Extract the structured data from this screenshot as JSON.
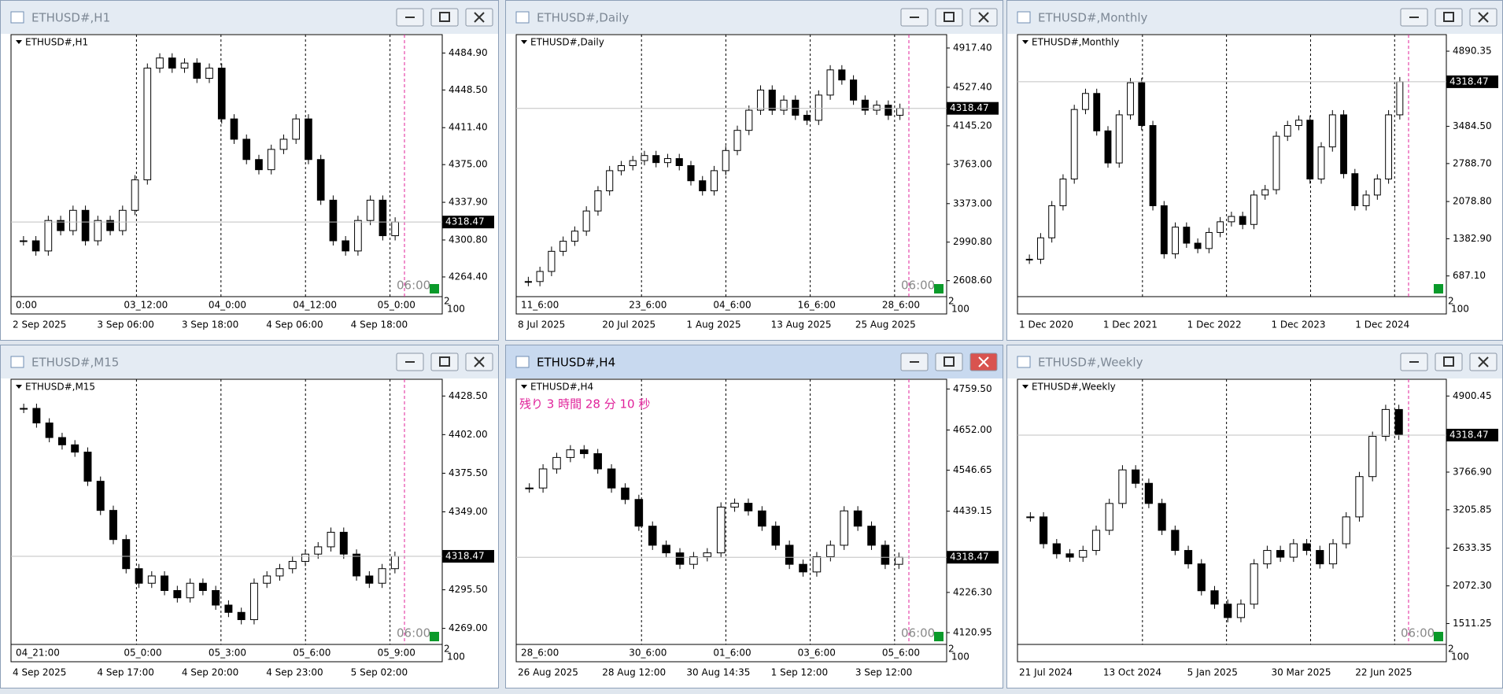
{
  "windows": [
    {
      "title": "ETHUSD#,H1",
      "label": "ETHUSD#,H1",
      "ylim": [
        4245,
        4503
      ],
      "yticks": [
        {
          "value": 4484.9,
          "label": "4484.90"
        },
        {
          "value": 4448.5,
          "label": "4448.50"
        },
        {
          "value": 4411.4,
          "label": "4411.40"
        },
        {
          "value": 4375,
          "label": "4375.00"
        },
        {
          "value": 4337.9,
          "label": "4337.90"
        },
        {
          "value": 4300.8,
          "label": "4300.80"
        },
        {
          "value": 4264.4,
          "label": "4264.40"
        }
      ],
      "current_price": 4318.47,
      "countdown": "06:00",
      "time_upper": [
        "0:00",
        "03_12:00",
        "04_0:00",
        "04_12:00",
        "05_0:00"
      ],
      "time_lower": [
        "2 Sep 2025",
        "3 Sep 06:00",
        "3 Sep 18:00",
        "4 Sep 06:00",
        "4 Sep 18:00"
      ],
      "axis_corner": [
        "2",
        "100"
      ],
      "closes": [
        4300,
        4290,
        4320,
        4310,
        4330,
        4300,
        4320,
        4310,
        4330,
        4360,
        4470,
        4480,
        4470,
        4475,
        4460,
        4470,
        4420,
        4400,
        4380,
        4370,
        4390,
        4400,
        4420,
        4380,
        4340,
        4300,
        4290,
        4320,
        4340,
        4305,
        4318.47
      ]
    },
    {
      "title": "ETHUSD#,Daily",
      "label": "ETHUSD#,Daily",
      "ylim": [
        2450,
        5050
      ],
      "yticks": [
        {
          "value": 4917.4,
          "label": "4917.40"
        },
        {
          "value": 4527.4,
          "label": "4527.40"
        },
        {
          "value": 4145.2,
          "label": "4145.20"
        },
        {
          "value": 3763,
          "label": "3763.00"
        },
        {
          "value": 3373,
          "label": "3373.00"
        },
        {
          "value": 2990.8,
          "label": "2990.80"
        },
        {
          "value": 2608.6,
          "label": "2608.60"
        }
      ],
      "current_price": 4318.47,
      "countdown": "06:00",
      "time_upper": [
        "11_6:00",
        "23_6:00",
        "04_6:00",
        "16_6:00",
        "28_6:00"
      ],
      "time_lower": [
        "8 Jul 2025",
        "20 Jul 2025",
        "1 Aug 2025",
        "13 Aug 2025",
        "25 Aug 2025"
      ],
      "axis_corner": [
        "2",
        "100"
      ],
      "closes": [
        2600,
        2700,
        2900,
        3000,
        3100,
        3300,
        3500,
        3700,
        3750,
        3800,
        3850,
        3780,
        3820,
        3750,
        3600,
        3500,
        3700,
        3900,
        4100,
        4300,
        4500,
        4300,
        4400,
        4250,
        4200,
        4450,
        4700,
        4600,
        4400,
        4300,
        4350,
        4250,
        4318.47
      ]
    },
    {
      "title": "ETHUSD#,Monthly",
      "label": "ETHUSD#,Monthly",
      "ylim": [
        300,
        5200
      ],
      "yticks": [
        4890.35,
        {
          "value": 3484.5,
          "label": "3484.50"
        },
        {
          "value": 2788.7,
          "label": "2788.70"
        },
        {
          "value": 2078.8,
          "label": "2078.80"
        },
        {
          "value": 1382.9,
          "label": "1382.90"
        },
        {
          "value": 687.1,
          "label": "687.10"
        }
      ],
      "current_price": 4318.47,
      "time_upper": [],
      "time_lower": [
        "1 Dec 2020",
        "1 Dec 2021",
        "1 Dec 2022",
        "1 Dec 2023",
        "1 Dec 2024"
      ],
      "axis_corner": [
        "2",
        "100"
      ],
      "closes": [
        1000,
        1400,
        2000,
        2500,
        3800,
        4100,
        3400,
        2800,
        3700,
        4300,
        3500,
        2000,
        1100,
        1600,
        1300,
        1200,
        1500,
        1700,
        1800,
        1650,
        2200,
        2300,
        3300,
        3500,
        3600,
        2500,
        3100,
        3700,
        2600,
        2000,
        2200,
        2500,
        3700,
        4318.47
      ]
    },
    {
      "title": "ETHUSD#,M15",
      "label": "ETHUSD#,M15",
      "ylim": [
        4258,
        4440
      ],
      "yticks": [
        {
          "value": 4428.5,
          "label": "4428.50"
        },
        {
          "value": 4402,
          "label": "4402.00"
        },
        {
          "value": 4375.5,
          "label": "4375.50"
        },
        {
          "value": 4349,
          "label": "4349.00"
        },
        {
          "value": 4295.5,
          "label": "4295.50"
        },
        {
          "value": 4269,
          "label": "4269.00"
        }
      ],
      "current_price": 4318.47,
      "countdown": "06:00",
      "time_upper": [
        "04_21:00",
        "05_0:00",
        "05_3:00",
        "05_6:00",
        "05_9:00"
      ],
      "time_lower": [
        "4 Sep 2025",
        "4 Sep 17:00",
        "4 Sep 20:00",
        "4 Sep 23:00",
        "5 Sep 02:00"
      ],
      "axis_corner": [
        "2",
        "100"
      ],
      "closes": [
        4420,
        4410,
        4400,
        4395,
        4390,
        4370,
        4350,
        4330,
        4310,
        4300,
        4305,
        4295,
        4290,
        4300,
        4295,
        4285,
        4280,
        4275,
        4300,
        4305,
        4310,
        4315,
        4320,
        4325,
        4335,
        4320,
        4305,
        4300,
        4310,
        4318.47
      ]
    },
    {
      "title": "ETHUSD#,H4",
      "label": "ETHUSD#,H4",
      "ylim": [
        4090,
        4785
      ],
      "yticks": [
        {
          "value": 4759.5,
          "label": "4759.50"
        },
        {
          "value": 4652,
          "label": "4652.00"
        },
        4546.65,
        4439.15,
        {
          "value": 4226.3,
          "label": "4226.30"
        },
        4120.95
      ],
      "current_price": 4318.47,
      "countdown": "06:00",
      "timer_text": "残り 3 時間 28 分 10 秒",
      "time_upper": [
        "28_6:00",
        "30_6:00",
        "01_6:00",
        "03_6:00",
        "05_6:00"
      ],
      "time_lower": [
        "26 Aug 2025",
        "28 Aug 12:00",
        "30 Aug 14:35",
        "1 Sep 12:00",
        "3 Sep 12:00"
      ],
      "axis_corner": [
        "2",
        "100"
      ],
      "closes": [
        4500,
        4550,
        4580,
        4600,
        4590,
        4550,
        4500,
        4470,
        4400,
        4350,
        4330,
        4300,
        4320,
        4330,
        4450,
        4460,
        4440,
        4400,
        4350,
        4300,
        4280,
        4320,
        4350,
        4440,
        4400,
        4350,
        4300,
        4318.47
      ]
    },
    {
      "title": "ETHUSD#,Weekly",
      "label": "ETHUSD#,Weekly",
      "ylim": [
        1200,
        5150
      ],
      "yticks": [
        4900.45,
        {
          "value": 3766.9,
          "label": "3766.90"
        },
        3205.85,
        2633.35,
        {
          "value": 2072.3,
          "label": "2072.30"
        },
        1511.25
      ],
      "current_price": 4318.47,
      "countdown": "06:00",
      "time_upper": [],
      "time_lower": [
        "21 Jul 2024",
        "13 Oct 2024",
        "5 Jan 2025",
        "30 Mar 2025",
        "22 Jun 2025"
      ],
      "axis_corner": [
        "2",
        "100"
      ],
      "closes": [
        3100,
        2700,
        2550,
        2500,
        2600,
        2900,
        3300,
        3800,
        3600,
        3300,
        2900,
        2600,
        2400,
        2000,
        1800,
        1600,
        1800,
        2400,
        2600,
        2500,
        2700,
        2600,
        2400,
        2700,
        3100,
        3700,
        4300,
        4700,
        4318.47
      ]
    }
  ]
}
